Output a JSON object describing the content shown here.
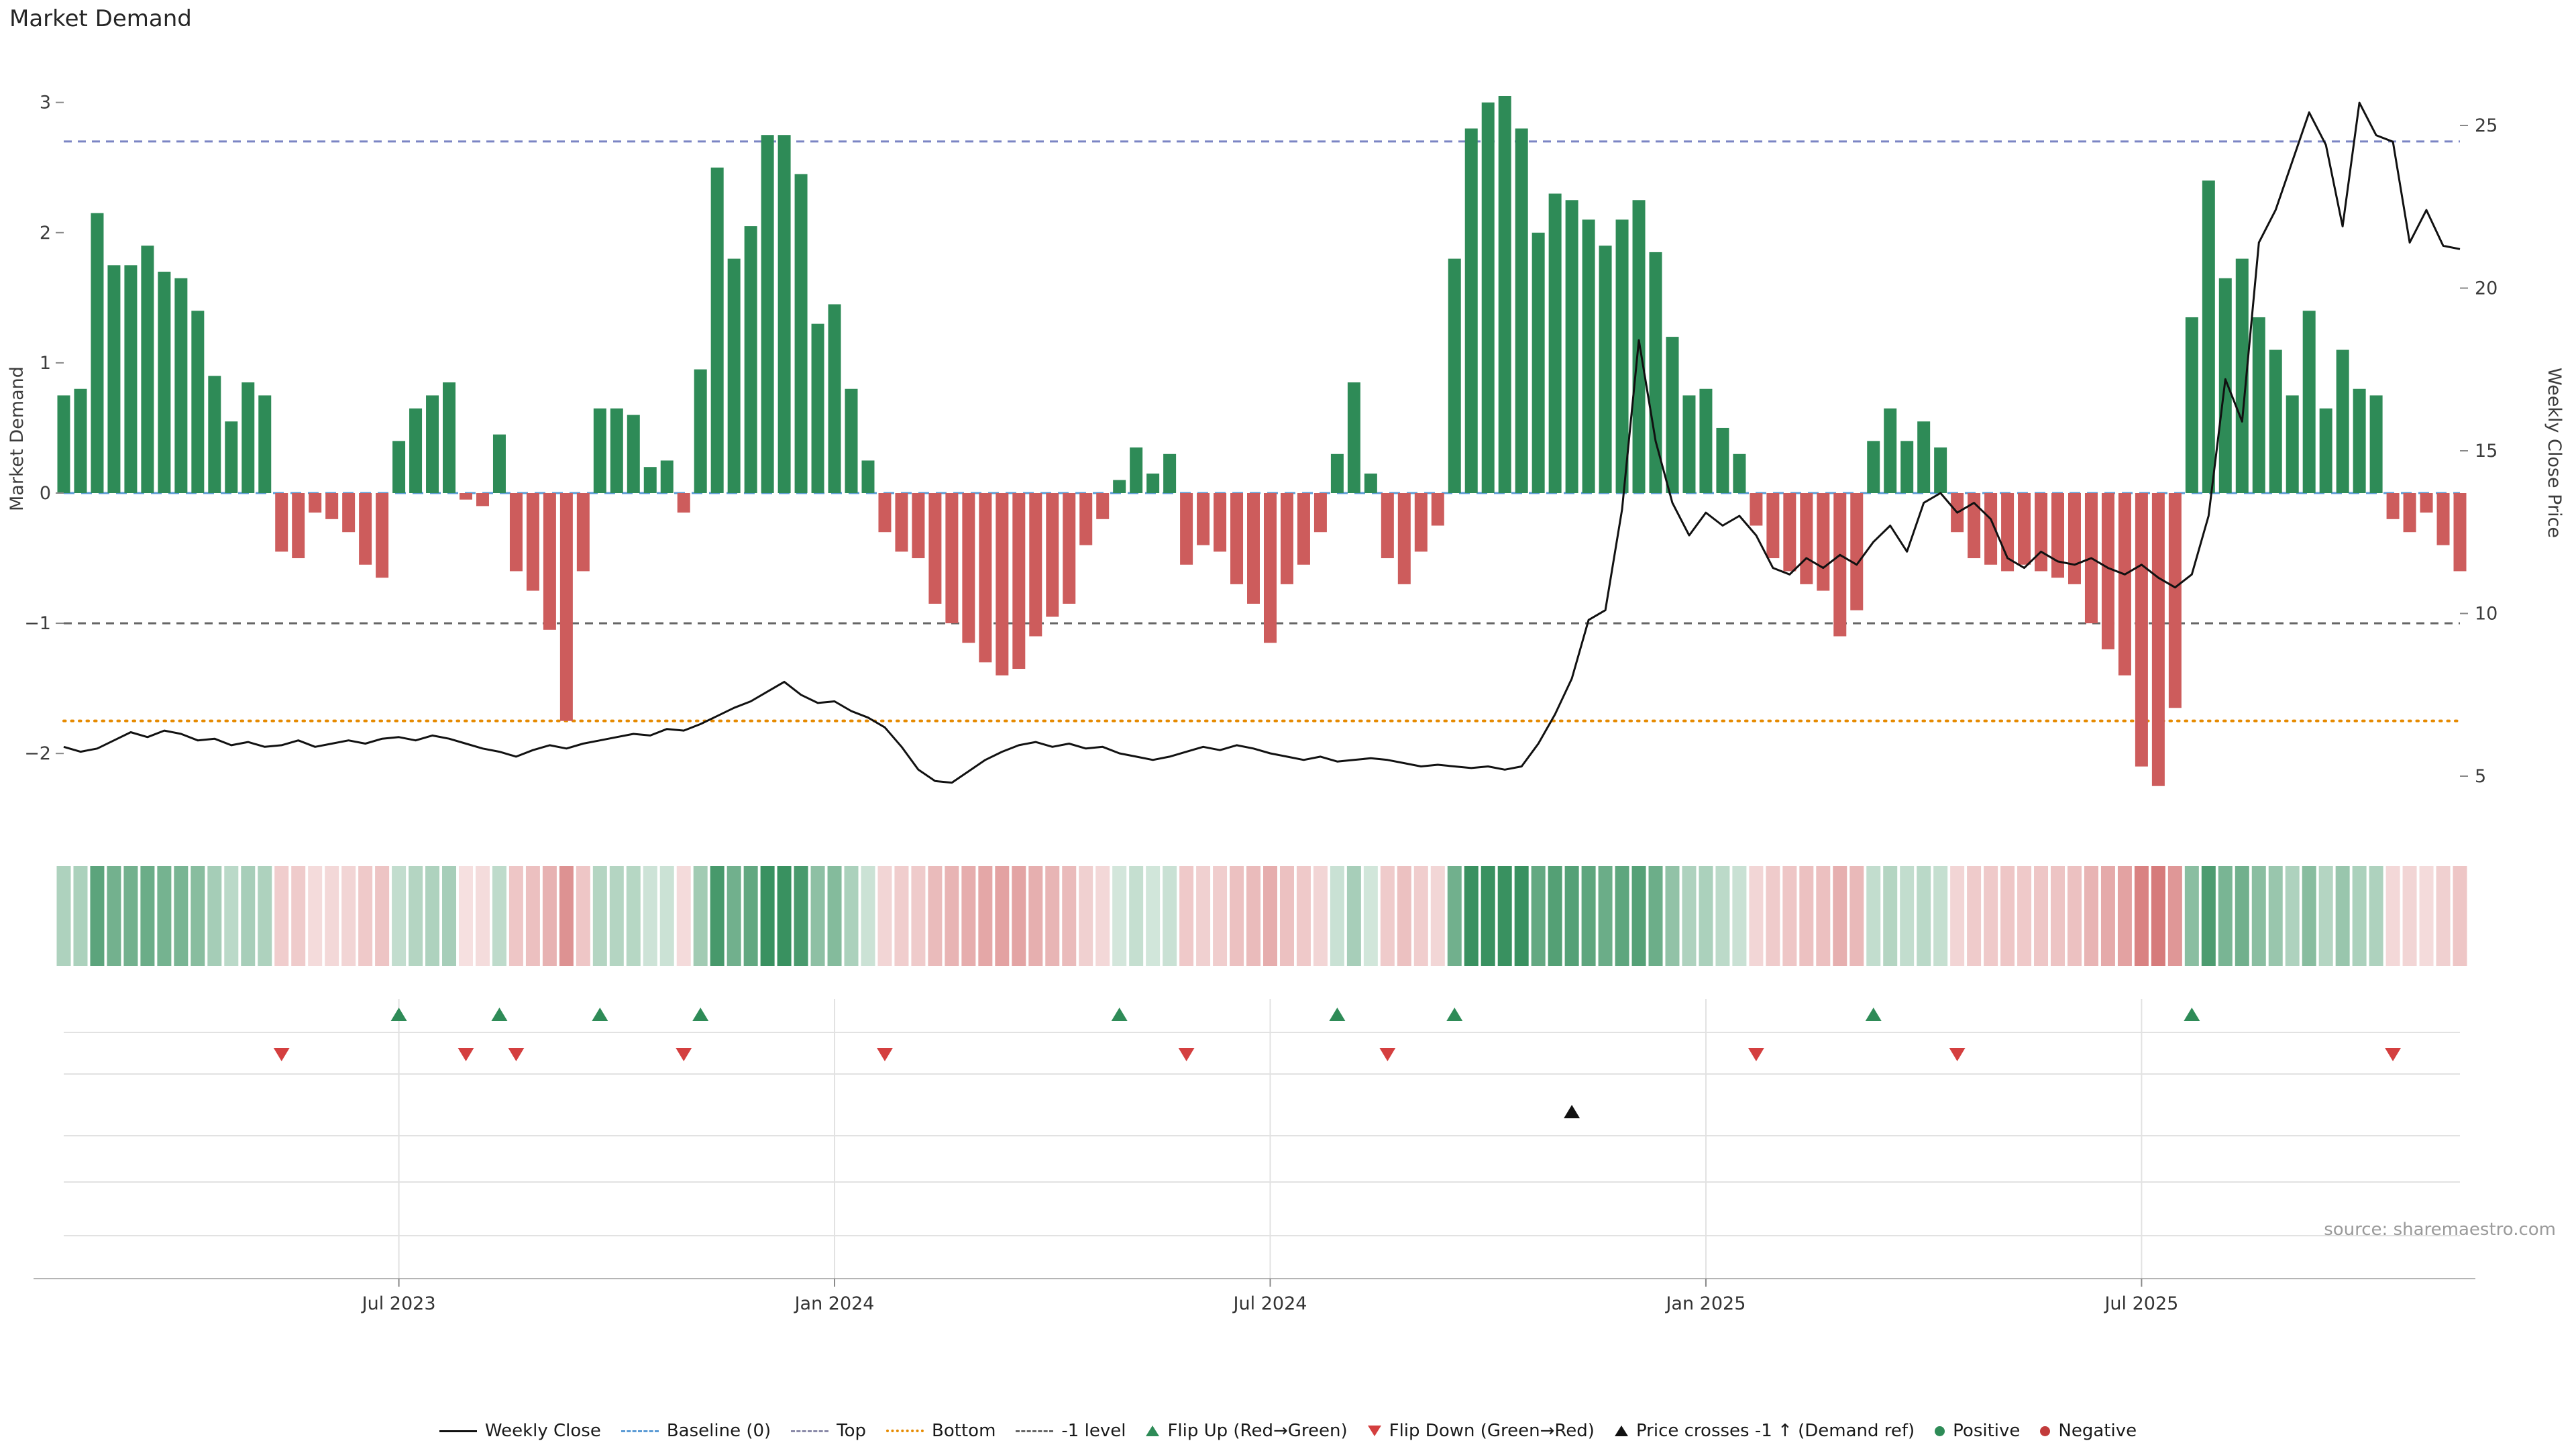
{
  "page": {
    "source": "source: sharemaestro.com"
  },
  "colors": {
    "positive": "#2e8b57",
    "negative": "#cd5c5c",
    "price_line": "#111111",
    "baseline": "#5b9bd5",
    "top": "#7b85c4",
    "bottom": "#e68a00",
    "minus_one": "#666666",
    "flip_up": "#2e8b57",
    "flip_down": "#d43f3f",
    "price_cross": "#111111",
    "grid": "#e2e2e2",
    "axis": "#b5b5b5",
    "tick_text": "#3c3c3c"
  },
  "chart_data": {
    "type": "bar+line combo with sign heatmap strip and event marker rows",
    "title": "Market Demand",
    "ylabel_left": "Market Demand",
    "ylabel_right": "Weekly Close Price",
    "ylim_left": [
      -2.5,
      3.2
    ],
    "ylim_right": [
      4,
      26
    ],
    "x": {
      "freq": "weekly",
      "n": 144
    },
    "x_ticks": [
      {
        "label": "Jul 2023",
        "week": 20
      },
      {
        "label": "Jan 2024",
        "week": 46
      },
      {
        "label": "Jul 2024",
        "week": 72
      },
      {
        "label": "Jan 2025",
        "week": 98
      },
      {
        "label": "Jul 2025",
        "week": 124
      }
    ],
    "left_ticks": [
      {
        "label": "3",
        "value": 3
      },
      {
        "label": "2",
        "value": 2
      },
      {
        "label": "1",
        "value": 1
      },
      {
        "label": "0",
        "value": 0
      },
      {
        "label": "−1",
        "value": -1
      },
      {
        "label": "−2",
        "value": -2
      }
    ],
    "right_ticks": [
      {
        "label": "25",
        "value": 25
      },
      {
        "label": "20",
        "value": 20
      },
      {
        "label": "15",
        "value": 15
      },
      {
        "label": "10",
        "value": 10
      },
      {
        "label": "5",
        "value": 5
      }
    ],
    "ref_lines": {
      "baseline": 0,
      "top": 2.7,
      "bottom": -1.75,
      "minus_one": -1
    },
    "demand": {
      "name": "Market Demand",
      "values": [
        0.75,
        0.8,
        2.15,
        1.75,
        1.75,
        1.9,
        1.7,
        1.65,
        1.4,
        0.9,
        0.55,
        0.85,
        0.75,
        -0.45,
        -0.5,
        -0.15,
        -0.2,
        -0.3,
        -0.55,
        -0.65,
        0.4,
        0.65,
        0.75,
        0.85,
        -0.05,
        -0.1,
        0.45,
        -0.6,
        -0.75,
        -1.05,
        -1.75,
        -0.6,
        0.65,
        0.65,
        0.6,
        0.2,
        0.25,
        -0.15,
        0.95,
        2.5,
        1.8,
        2.05,
        2.75,
        2.75,
        2.45,
        1.3,
        1.45,
        0.8,
        0.25,
        -0.3,
        -0.45,
        -0.5,
        -0.85,
        -1.0,
        -1.15,
        -1.3,
        -1.4,
        -1.35,
        -1.1,
        -0.95,
        -0.85,
        -0.4,
        -0.2,
        0.1,
        0.35,
        0.15,
        0.3,
        -0.55,
        -0.4,
        -0.45,
        -0.7,
        -0.85,
        -1.15,
        -0.7,
        -0.55,
        -0.3,
        0.3,
        0.85,
        0.15,
        -0.5,
        -0.7,
        -0.45,
        -0.25,
        1.8,
        2.8,
        3.0,
        3.05,
        2.8,
        2.0,
        2.3,
        2.25,
        2.1,
        1.9,
        2.1,
        2.25,
        1.85,
        1.2,
        0.75,
        0.8,
        0.5,
        0.3,
        -0.25,
        -0.5,
        -0.6,
        -0.7,
        -0.75,
        -1.1,
        -0.9,
        0.4,
        0.65,
        0.4,
        0.55,
        0.35,
        -0.3,
        -0.5,
        -0.55,
        -0.6,
        -0.55,
        -0.6,
        -0.65,
        -0.7,
        -1.0,
        -1.2,
        -1.4,
        -2.1,
        -2.25,
        -1.65,
        1.35,
        2.4,
        1.65,
        1.8,
        1.35,
        1.1,
        0.75,
        1.4,
        0.65,
        1.1,
        0.8,
        0.75,
        -0.2,
        -0.3,
        -0.15,
        -0.4,
        -0.6
      ]
    },
    "price": {
      "name": "Weekly Close",
      "values": [
        5.9,
        5.75,
        5.85,
        6.1,
        6.35,
        6.2,
        6.4,
        6.3,
        6.1,
        6.15,
        5.95,
        6.05,
        5.9,
        5.95,
        6.1,
        5.9,
        6.0,
        6.1,
        6.0,
        6.15,
        6.2,
        6.1,
        6.25,
        6.15,
        6.0,
        5.85,
        5.75,
        5.6,
        5.8,
        5.95,
        5.85,
        6.0,
        6.1,
        6.2,
        6.3,
        6.25,
        6.45,
        6.4,
        6.6,
        6.85,
        7.1,
        7.3,
        7.6,
        7.9,
        7.5,
        7.25,
        7.3,
        7.0,
        6.8,
        6.5,
        5.9,
        5.2,
        4.85,
        4.8,
        5.15,
        5.5,
        5.75,
        5.95,
        6.05,
        5.9,
        6.0,
        5.85,
        5.9,
        5.7,
        5.6,
        5.5,
        5.6,
        5.75,
        5.9,
        5.8,
        5.95,
        5.85,
        5.7,
        5.6,
        5.5,
        5.6,
        5.45,
        5.5,
        5.55,
        5.5,
        5.4,
        5.3,
        5.35,
        5.3,
        5.25,
        5.3,
        5.2,
        5.3,
        6.0,
        6.9,
        8.0,
        9.8,
        10.1,
        13.2,
        18.4,
        15.3,
        13.4,
        12.4,
        13.1,
        12.7,
        13.0,
        12.4,
        11.4,
        11.2,
        11.7,
        11.4,
        11.8,
        11.5,
        12.2,
        12.7,
        11.9,
        13.4,
        13.7,
        13.1,
        13.4,
        12.9,
        11.7,
        11.4,
        11.9,
        11.6,
        11.5,
        11.7,
        11.4,
        11.2,
        11.5,
        11.1,
        10.8,
        11.2,
        13.0,
        17.2,
        15.9,
        21.4,
        22.4,
        23.9,
        25.4,
        24.4,
        21.9,
        25.7,
        24.7,
        24.5,
        21.4,
        22.4,
        21.3,
        21.2
      ]
    },
    "markers": {
      "flip_up_weeks": [
        20,
        26,
        32,
        38,
        63,
        76,
        83,
        108,
        127
      ],
      "flip_down_weeks": [
        13,
        24,
        27,
        37,
        49,
        67,
        79,
        101,
        113,
        139
      ],
      "price_cross_weeks": [
        90
      ]
    },
    "heatmap": {
      "derived_from": "demand sign and magnitude per week"
    }
  },
  "legend": {
    "items": [
      {
        "label": "Weekly Close",
        "swatch": "line-solid",
        "color": "#111111"
      },
      {
        "label": "Baseline (0)",
        "swatch": "line-dashed",
        "color": "#5b9bd5"
      },
      {
        "label": "Top",
        "swatch": "line-dashed",
        "color": "#8a8aa8"
      },
      {
        "label": "Bottom",
        "swatch": "line-dotted",
        "color": "#e68a00"
      },
      {
        "label": "-1 level",
        "swatch": "line-dashed",
        "color": "#666666"
      },
      {
        "label": "Flip Up (Red→Green)",
        "swatch": "triangle-up",
        "color": "#2e8b57"
      },
      {
        "label": "Flip Down (Green→Red)",
        "swatch": "triangle-down",
        "color": "#d43f3f"
      },
      {
        "label": "Price crosses -1 ↑ (Demand ref)",
        "swatch": "triangle-up",
        "color": "#111111"
      },
      {
        "label": "Positive",
        "swatch": "dot",
        "color": "#2e8b57"
      },
      {
        "label": "Negative",
        "swatch": "dot",
        "color": "#c23b3b"
      }
    ]
  }
}
